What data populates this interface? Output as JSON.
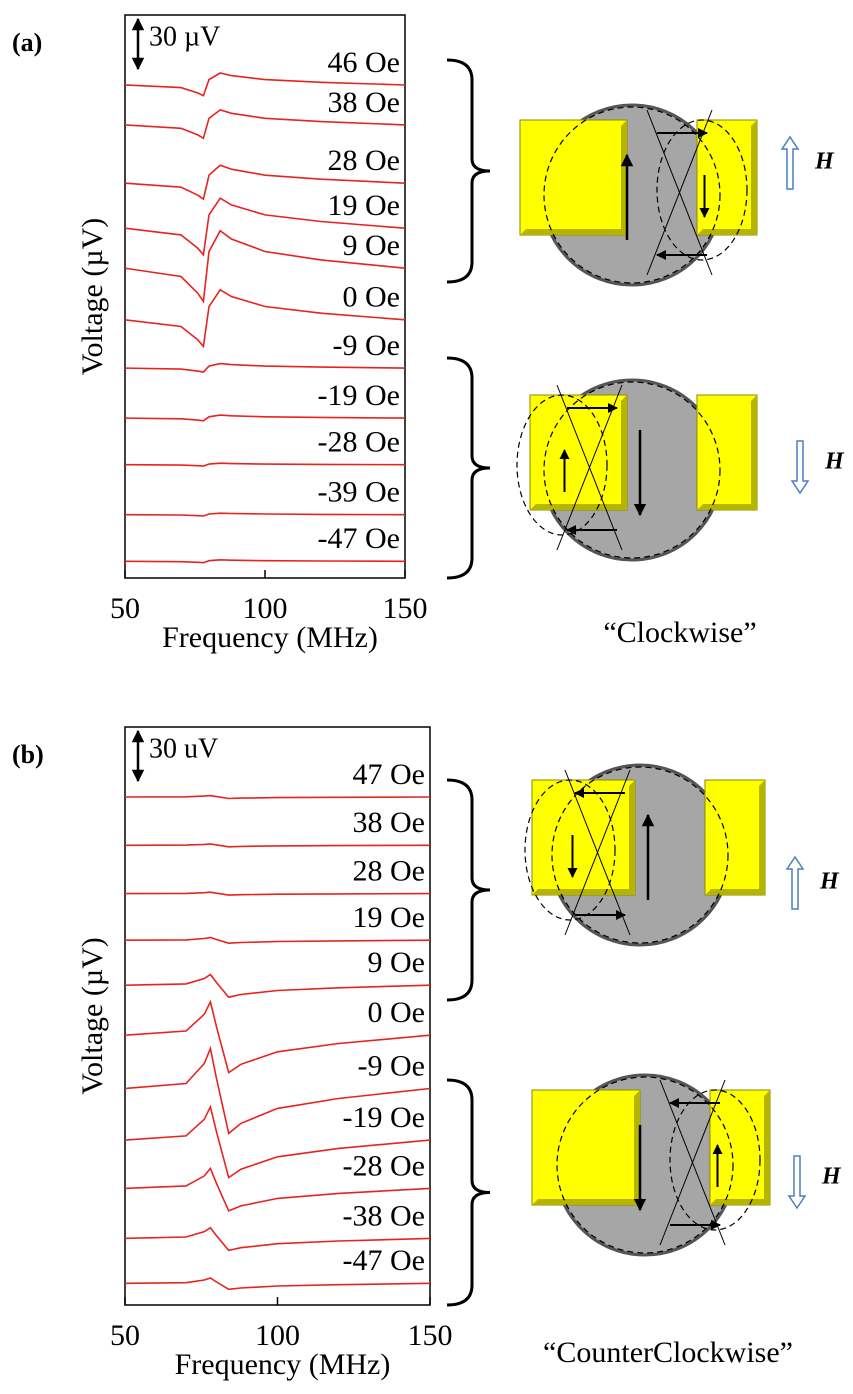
{
  "chart_data": [
    {
      "type": "line",
      "panel_label": "(a)",
      "xlabel": "Frequency (MHz)",
      "ylabel": "Voltage (µV)",
      "scale_bar": {
        "value": 30,
        "label": "30 µV"
      },
      "xlim": [
        50,
        150
      ],
      "xticks": [
        50,
        100,
        150
      ],
      "ylim": [
        0,
        338
      ],
      "color": "#e8231f",
      "x": [
        50,
        70,
        76,
        78,
        80,
        84,
        88,
        100,
        120,
        150
      ],
      "series": [
        {
          "name": "46 Oe",
          "values": [
            296,
            294.4,
            291.2,
            289.6,
            299.2,
            303.2,
            301.6,
            299.2,
            297.6,
            296
          ]
        },
        {
          "name": "38 Oe",
          "values": [
            272,
            270,
            266,
            264,
            276,
            281,
            279,
            276,
            274,
            272
          ]
        },
        {
          "name": "28 Oe",
          "values": [
            237,
            234.6,
            229.8,
            227.4,
            241.8,
            247.8,
            245.4,
            241.8,
            239.4,
            237
          ]
        },
        {
          "name": "19 Oe",
          "values": [
            210,
            206,
            198,
            194,
            218,
            228,
            224,
            218,
            214,
            210
          ]
        },
        {
          "name": "9 Oe",
          "values": [
            186,
            181,
            171,
            166,
            196,
            208.5,
            203.5,
            196,
            191,
            186
          ]
        },
        {
          "name": "0 Oe",
          "values": [
            155,
            151,
            143,
            139,
            163,
            173,
            169,
            163,
            159,
            155
          ]
        },
        {
          "name": "-9 Oe",
          "values": [
            126,
            125.4,
            124.2,
            123.6,
            127.2,
            128.7,
            128.1,
            127.2,
            126.6,
            126
          ]
        },
        {
          "name": "-19 Oe",
          "values": [
            96,
            95.6,
            94.8,
            94.4,
            96.8,
            97.8,
            97.4,
            96.8,
            96.4,
            96
          ]
        },
        {
          "name": "-28 Oe",
          "values": [
            68,
            67.8,
            67.4,
            67.2,
            68.4,
            68.9,
            68.7,
            68.4,
            68.2,
            68
          ]
        },
        {
          "name": "-39 Oe",
          "values": [
            38,
            37.8,
            37.4,
            37.2,
            38.4,
            38.9,
            38.7,
            38.4,
            38.2,
            38
          ]
        },
        {
          "name": "-47 Oe",
          "values": [
            10,
            9.8,
            9.4,
            9.2,
            10.4,
            10.9,
            10.7,
            10.4,
            10.2,
            10
          ]
        }
      ],
      "caption": "“Clockwise”",
      "field_labels": [
        "H",
        "H"
      ]
    },
    {
      "type": "line",
      "panel_label": "(b)",
      "xlabel": "Frequency (MHz)",
      "ylabel": "Voltage (µV)",
      "scale_bar": {
        "value": 30,
        "label": "30 uV"
      },
      "xlim": [
        50,
        150
      ],
      "xticks": [
        50,
        100,
        150
      ],
      "ylim": [
        0,
        347
      ],
      "color": "#e8231f",
      "x": [
        50,
        70,
        76,
        78,
        80,
        84,
        88,
        100,
        120,
        150
      ],
      "series": [
        {
          "name": "47 Oe",
          "values": [
            305,
            305.1,
            305.5,
            305.8,
            305.2,
            304.1,
            304.3,
            304.6,
            304.8,
            305
          ]
        },
        {
          "name": "38 Oe",
          "values": [
            276,
            276.1,
            276.5,
            276.8,
            276.2,
            275.1,
            275.3,
            275.6,
            275.8,
            276
          ]
        },
        {
          "name": "28 Oe",
          "values": [
            247,
            247.1,
            247.5,
            247.8,
            247.2,
            246.1,
            246.3,
            246.6,
            246.8,
            247
          ]
        },
        {
          "name": "19 Oe",
          "values": [
            219,
            219.2,
            220,
            220.6,
            219.4,
            217.2,
            217.6,
            218.2,
            218.6,
            219
          ]
        },
        {
          "name": "9 Oe",
          "values": [
            192,
            192.8,
            196,
            198.4,
            193.6,
            184.8,
            186.4,
            188.8,
            190.4,
            192
          ]
        },
        {
          "name": "0 Oe",
          "values": [
            162,
            164.5,
            174.5,
            182,
            167,
            139.5,
            144.5,
            152,
            157,
            162
          ]
        },
        {
          "name": "-9 Oe",
          "values": [
            130,
            133,
            145,
            154,
            136,
            103,
            109,
            118,
            124,
            130
          ]
        },
        {
          "name": "-19 Oe",
          "values": [
            99,
            101.5,
            111.5,
            119,
            104,
            76.5,
            81.5,
            89,
            94,
            99
          ]
        },
        {
          "name": "-28 Oe",
          "values": [
            70,
            71.5,
            77.5,
            82,
            73,
            56.5,
            59.5,
            64,
            67,
            70
          ]
        },
        {
          "name": "-38 Oe",
          "values": [
            40,
            40.8,
            44,
            46.4,
            41.6,
            32.8,
            34.4,
            36.8,
            38.4,
            40
          ]
        },
        {
          "name": "-47 Oe",
          "values": [
            13,
            13.4,
            15,
            16.2,
            13.8,
            9.4,
            10.2,
            11.4,
            12.2,
            13
          ]
        }
      ],
      "caption": "“CounterClockwise”",
      "field_labels": [
        "H",
        "H"
      ]
    }
  ]
}
